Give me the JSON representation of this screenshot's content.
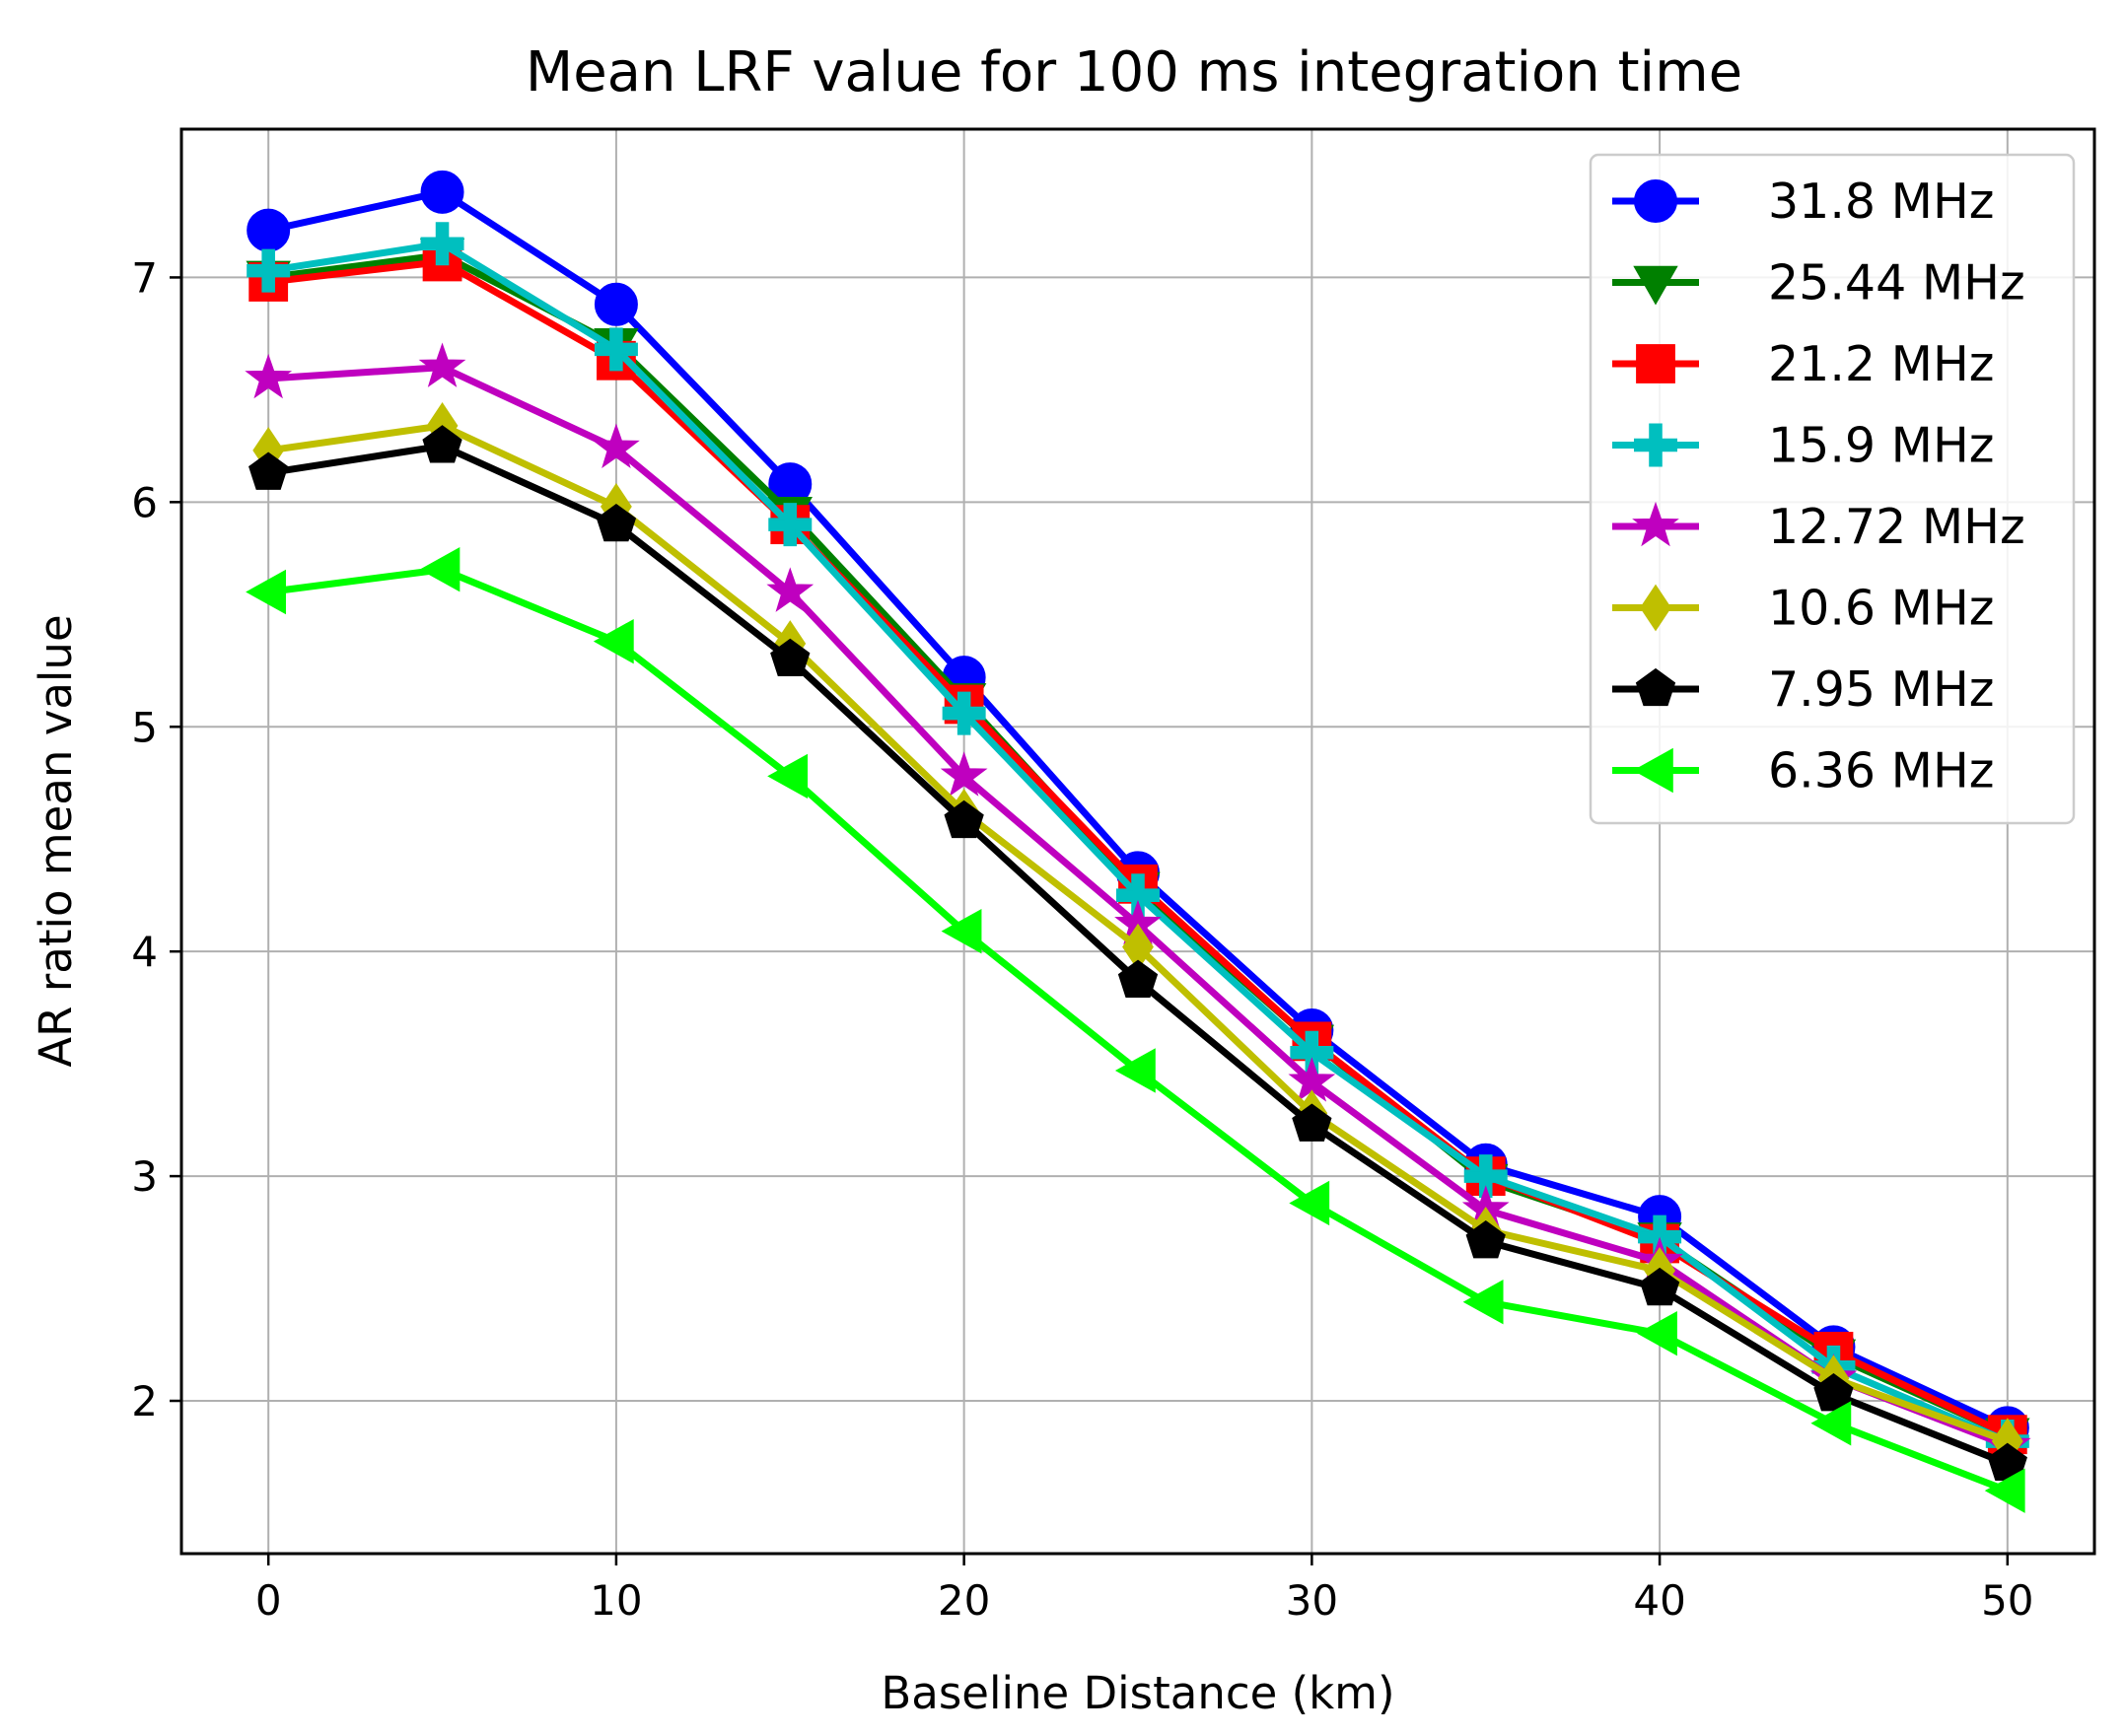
{
  "chart_data": {
    "type": "line",
    "title": "Mean LRF value for 100 ms integration time",
    "xlabel": "Baseline Distance (km)",
    "ylabel": "AR ratio mean value",
    "xlim": [
      -2.5,
      52.5
    ],
    "ylim": [
      1.32,
      7.66
    ],
    "grid": true,
    "legend_position": "top-right",
    "x": [
      0,
      5,
      10,
      15,
      20,
      25,
      30,
      35,
      40,
      45,
      50
    ],
    "xticks": [
      0,
      10,
      20,
      30,
      40,
      50
    ],
    "yticks": [
      2,
      3,
      4,
      5,
      6,
      7
    ],
    "series": [
      {
        "name": "31.8 MHz",
        "color": "#0000ff",
        "marker": "circle",
        "values": [
          7.21,
          7.38,
          6.88,
          6.08,
          5.22,
          4.35,
          3.65,
          3.05,
          2.82,
          2.24,
          1.88
        ]
      },
      {
        "name": "25.44 MHz",
        "color": "#008000",
        "marker": "triangle-down",
        "values": [
          7.0,
          7.1,
          6.7,
          5.95,
          5.12,
          4.28,
          3.6,
          2.98,
          2.72,
          2.2,
          1.85
        ]
      },
      {
        "name": "21.2 MHz",
        "color": "#ff0000",
        "marker": "square",
        "values": [
          6.98,
          7.07,
          6.63,
          5.9,
          5.1,
          4.3,
          3.6,
          3.0,
          2.7,
          2.22,
          1.85
        ]
      },
      {
        "name": "15.9 MHz",
        "color": "#00bfbf",
        "marker": "plus",
        "values": [
          7.03,
          7.15,
          6.68,
          5.9,
          5.06,
          4.25,
          3.55,
          3.0,
          2.73,
          2.15,
          1.82
        ]
      },
      {
        "name": "12.72 MHz",
        "color": "#bf00bf",
        "marker": "star",
        "values": [
          6.55,
          6.6,
          6.24,
          5.6,
          4.78,
          4.12,
          3.42,
          2.85,
          2.62,
          2.1,
          1.8
        ]
      },
      {
        "name": "10.6 MHz",
        "color": "#bfbf00",
        "marker": "diamond",
        "values": [
          6.23,
          6.34,
          5.98,
          5.37,
          4.62,
          4.02,
          3.28,
          2.76,
          2.58,
          2.1,
          1.82
        ]
      },
      {
        "name": "7.95 MHz",
        "color": "#000000",
        "marker": "pentagon",
        "values": [
          6.13,
          6.25,
          5.9,
          5.3,
          4.58,
          3.87,
          3.23,
          2.71,
          2.5,
          2.03,
          1.72
        ]
      },
      {
        "name": "6.36 MHz",
        "color": "#00ff00",
        "marker": "triangle-left",
        "values": [
          5.6,
          5.7,
          5.38,
          4.78,
          4.09,
          3.47,
          2.88,
          2.44,
          2.3,
          1.9,
          1.6
        ]
      }
    ]
  }
}
